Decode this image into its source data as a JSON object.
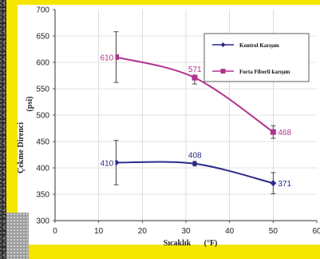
{
  "chart_data": {
    "type": "line",
    "title": "",
    "xlabel": "Sıcaklık",
    "xlabel_unit": "(°F)",
    "ylabel": "Çekme Direnci",
    "ylabel_unit": "(psi)",
    "xlim": [
      0,
      60
    ],
    "ylim": [
      300,
      700
    ],
    "xticks": [
      "0",
      "10",
      "20",
      "30",
      "40",
      "50",
      "60"
    ],
    "yticks": [
      "300",
      "350",
      "400",
      "450",
      "500",
      "550",
      "600",
      "650",
      "700"
    ],
    "grid": true,
    "legend_position": "top-right",
    "series": [
      {
        "name": "Kontrol Karışım",
        "color": "#2a2a8c",
        "marker": "diamond",
        "x": [
          14,
          32,
          50
        ],
        "y": [
          410,
          408,
          371
        ],
        "labels": [
          "410",
          "408",
          "371"
        ],
        "err": [
          42,
          4,
          20
        ]
      },
      {
        "name": "Forta Fiberli karışım",
        "color": "#b0338f",
        "marker": "square",
        "x": [
          14,
          32,
          50
        ],
        "y": [
          610,
          571,
          468
        ],
        "labels": [
          "610",
          "571",
          "468"
        ],
        "err": [
          48,
          12,
          12
        ]
      }
    ]
  }
}
